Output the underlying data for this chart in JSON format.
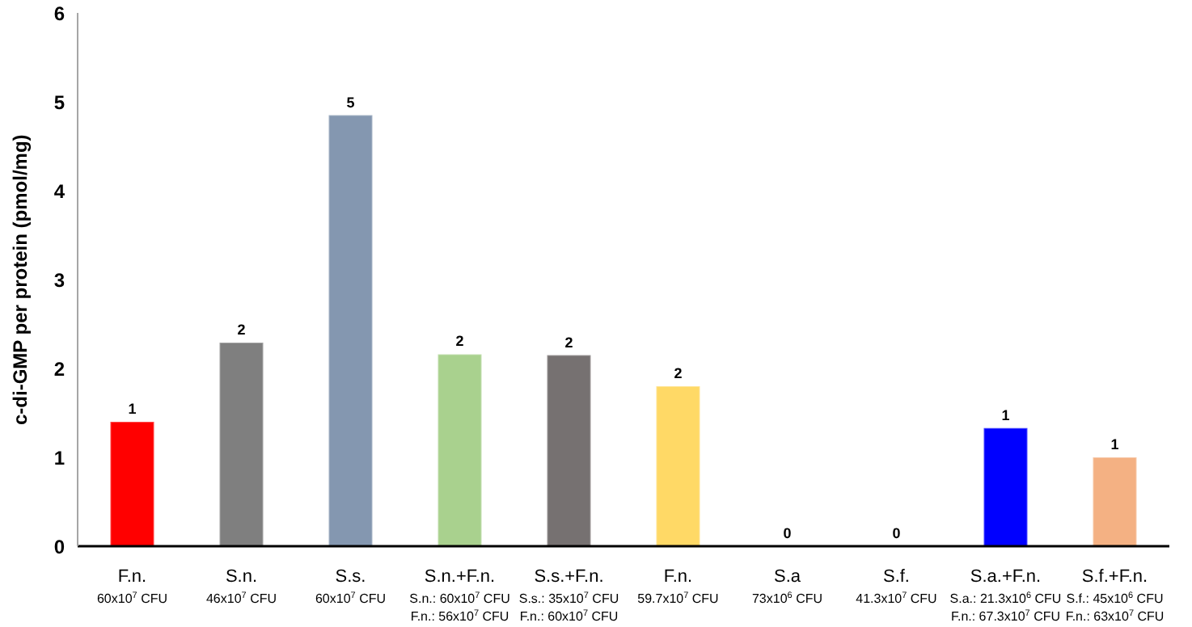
{
  "chart_data": {
    "type": "bar",
    "ylabel": "c-di-GMP per protein (pmol/mg)",
    "categories": [
      "F.n.\n60x10$^{7}$ CFU",
      "S.n.\n46x10$^{7}$ CFU",
      "S.s.\n60x10$^{7}$ CFU",
      "S.n.+F.n.\nS.n.: 60x10$^{7}$ CFU\nF.n.: 56x10$^{7}$ CFU",
      "S.s.+F.n.\nS.s.: 35x10$^{7}$ CFU\nF.n.: 60x10$^{7}$ CFU",
      "F.n.\n59.7x10$^{7}$ CFU",
      "S.a\n73x10$^{6}$ CFU",
      "S.f.\n41.3x10$^{7}$ CFU",
      "S.a.+F.n.\nS.a.: 21.3x10$^{6}$ CFU\nF.n.: 67.3x10$^{7}$ CFU",
      "S.f.+F.n.\nS.f.: 45x10$^{6}$ CFU\nF.n.: 63x10$^{7}$ CFU"
    ],
    "values": [
      1.4,
      2.29,
      4.85,
      2.16,
      2.15,
      1.8,
      0,
      0,
      1.33,
      1.0
    ],
    "value_labels": [
      "1",
      "2",
      "5",
      "2",
      "2",
      "2",
      "0",
      "0",
      "1",
      "1"
    ],
    "colors": [
      "#ff0000",
      "#7f7f7f",
      "#8497b0",
      "#a9d18e",
      "#767171",
      "#ffd966",
      "#bfbfbf",
      "#bfbfbf",
      "#0000ff",
      "#f4b183"
    ],
    "ylim": [
      0,
      6
    ],
    "yticks": [
      0,
      1,
      2,
      3,
      4,
      5,
      6
    ],
    "grid": false,
    "legend": false
  }
}
